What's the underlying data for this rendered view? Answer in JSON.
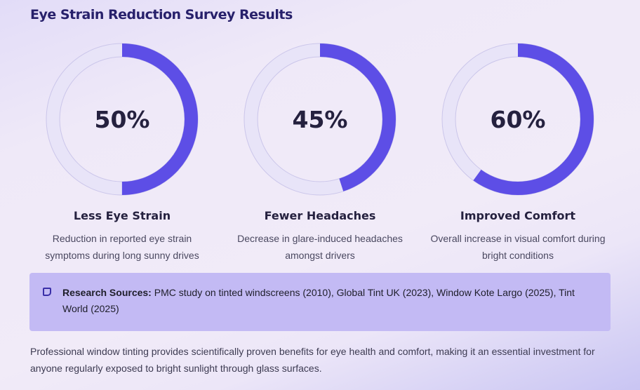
{
  "title": "Eye Strain Reduction Survey Results",
  "chart_data": {
    "type": "pie",
    "series": [
      {
        "label": "Less Eye Strain",
        "value": 50,
        "display": "50%",
        "description": "Reduction in reported eye strain symptoms during long sunny drives"
      },
      {
        "label": "Fewer Headaches",
        "value": 45,
        "display": "45%",
        "description": "Decrease in glare-induced headaches amongst drivers"
      },
      {
        "label": "Improved Comfort",
        "value": 60,
        "display": "60%",
        "description": "Overall increase in visual comfort during bright conditions"
      }
    ],
    "max": 100,
    "colors": {
      "fill": "#5d4ee6",
      "track": "#e8e4f8"
    }
  },
  "sources": {
    "label": "Research Sources:",
    "text": " PMC study on tinted windscreens (2010), Global Tint UK (2023), Window Kote Largo (2025), Tint World (2025)",
    "icon": "note-icon"
  },
  "footer": "Professional window tinting provides scientifically proven benefits for eye health and comfort, making it an essential investment for anyone regularly exposed to bright sunlight through glass surfaces."
}
